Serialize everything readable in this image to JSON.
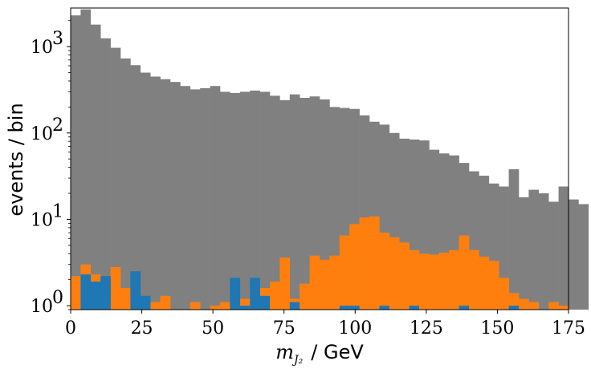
{
  "chart_data": {
    "type": "bar",
    "subtype": "histogram",
    "xlabel_math": "m",
    "xlabel_sub": "J₂",
    "xlabel_unit": "/ GeV",
    "ylabel": "events / bin",
    "xlim": [
      0,
      175
    ],
    "ylim": [
      0.9,
      2800
    ],
    "yscale": "log",
    "bin_width": 3.5,
    "x_ticks": [
      0,
      25,
      50,
      75,
      100,
      125,
      150,
      175
    ],
    "x_tick_labels": [
      "0",
      "25",
      "50",
      "75",
      "100",
      "125",
      "150",
      "175"
    ],
    "y_ticks": [
      1,
      10,
      100,
      1000
    ],
    "y_tick_labels": [
      "10",
      "10",
      "10",
      "10"
    ],
    "y_tick_exponents": [
      "0",
      "1",
      "2",
      "3"
    ],
    "colors": {
      "background": "#808080",
      "signal_orange": "#ff7f0e",
      "signal_blue": "#1f77b4"
    },
    "series": [
      {
        "color": "#808080",
        "values": [
          2300,
          2700,
          1800,
          1250,
          970,
          730,
          610,
          500,
          450,
          420,
          390,
          350,
          320,
          330,
          350,
          300,
          290,
          300,
          310,
          300,
          270,
          240,
          280,
          255,
          265,
          245,
          200,
          195,
          190,
          160,
          135,
          125,
          100,
          86,
          84,
          82,
          64,
          58,
          55,
          45,
          36,
          32,
          26,
          24,
          38,
          18,
          22,
          20,
          16,
          24,
          17,
          15
        ]
      },
      {
        "color": "#ff7f0e",
        "values": [
          2.2,
          3.0,
          2.3,
          1.2,
          2.8,
          1.6,
          1.2,
          1.1,
          1.1,
          1.3,
          0,
          0.0,
          1.1,
          0,
          1.0,
          1.1,
          0,
          1.2,
          1.6,
          1.6,
          1.9,
          3.6,
          1.2,
          1.8,
          3.8,
          3.4,
          3.8,
          6.5,
          8.8,
          10.5,
          10.8,
          7.0,
          6.2,
          5.4,
          4.4,
          4.0,
          3.9,
          4.1,
          4.4,
          6.5,
          4.4,
          3.7,
          3.3,
          2.1,
          1.4,
          1.2,
          1.1,
          0,
          1.1,
          1.0,
          0,
          0
        ]
      },
      {
        "color": "#1f77b4",
        "values": [
          0,
          2.3,
          1.9,
          2.2,
          0,
          0,
          2.5,
          1.3,
          0,
          0,
          0,
          0,
          0,
          0,
          0,
          0,
          2.1,
          0,
          2.1,
          0,
          0,
          0,
          0,
          0,
          0,
          0,
          0,
          0,
          0,
          0,
          0,
          0,
          0,
          0,
          0,
          0,
          0,
          0,
          0,
          0,
          0,
          0,
          0,
          0,
          0,
          0,
          0,
          0,
          0,
          0,
          0,
          0
        ]
      }
    ],
    "blue_extra": [
      {
        "x": 59.5,
        "value": 1.0
      },
      {
        "x": 66.5,
        "value": 1.3
      },
      {
        "x": 77,
        "value": 1.1
      },
      {
        "x": 94.5,
        "value": 1.0
      },
      {
        "x": 98,
        "value": 1.0
      },
      {
        "x": 108.5,
        "value": 1.0
      },
      {
        "x": 119,
        "value": 1.0
      },
      {
        "x": 136.5,
        "value": 1.0
      },
      {
        "x": 154,
        "value": 1.0
      }
    ]
  }
}
